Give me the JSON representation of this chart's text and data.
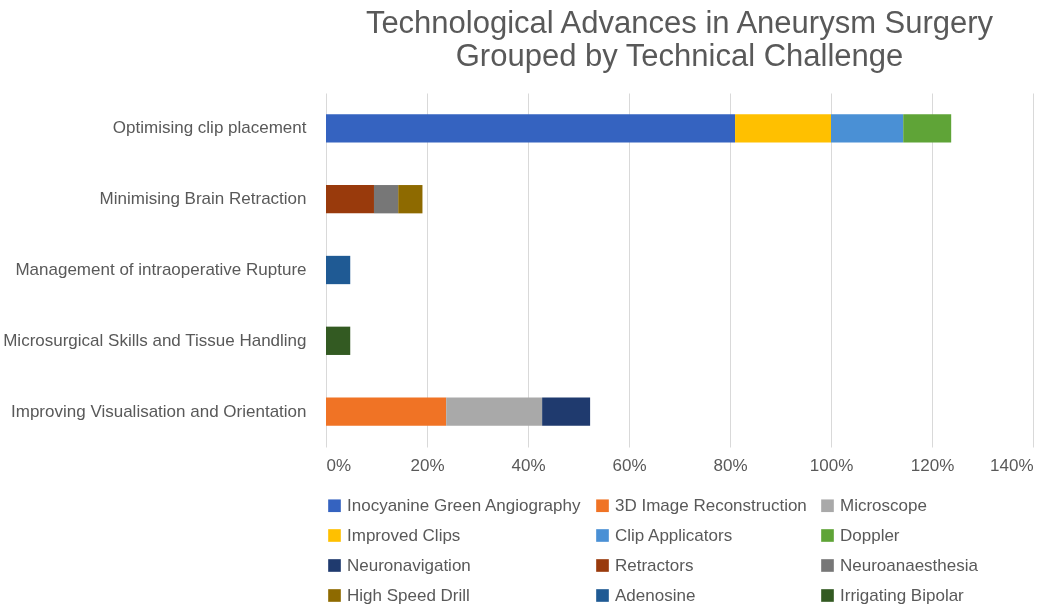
{
  "chart_data": {
    "type": "bar",
    "orientation": "horizontal",
    "stacked": true,
    "title": "Technological Advances in Aneurysm Surgery\nGrouped by Technical Challenge",
    "categories": [
      "Optimising clip placement",
      "Minimising Brain Retraction",
      "Management of intraoperative Rupture",
      "Microsurgical Skills and Tissue Handling",
      "Improving Visualisation and Orientation"
    ],
    "series": [
      {
        "name": "Inocyanine Green Angiography",
        "color": "#3563c0",
        "values": [
          81,
          null,
          null,
          null,
          null
        ]
      },
      {
        "name": "3D Image Reconstruction",
        "color": "#f07325",
        "values": [
          null,
          null,
          null,
          null,
          23.8
        ]
      },
      {
        "name": "Microscope",
        "color": "#a9a9a9",
        "values": [
          null,
          null,
          null,
          null,
          19
        ]
      },
      {
        "name": "Improved Clips",
        "color": "#ffc000",
        "values": [
          19,
          null,
          null,
          null,
          null
        ]
      },
      {
        "name": "Clip Applicators",
        "color": "#4a90d5",
        "values": [
          14.3,
          null,
          null,
          null,
          null
        ]
      },
      {
        "name": "Doppler",
        "color": "#5fa437",
        "values": [
          9.5,
          null,
          null,
          null,
          null
        ]
      },
      {
        "name": "Neuronavigation",
        "color": "#1f3a6e",
        "values": [
          null,
          null,
          null,
          null,
          9.5
        ]
      },
      {
        "name": "Retractors",
        "color": "#993a0c",
        "values": [
          null,
          9.5,
          null,
          null,
          null
        ]
      },
      {
        "name": "Neuroanaesthesia",
        "color": "#777777",
        "values": [
          null,
          4.8,
          null,
          null,
          null
        ]
      },
      {
        "name": "High Speed Drill",
        "color": "#8e6a00",
        "values": [
          null,
          4.8,
          null,
          null,
          null
        ]
      },
      {
        "name": "Adenosine",
        "color": "#1f5a94",
        "values": [
          null,
          null,
          4.8,
          null,
          null
        ]
      },
      {
        "name": "Irrigating Bipolar",
        "color": "#335a22",
        "values": [
          null,
          null,
          null,
          4.8,
          null
        ]
      }
    ],
    "xlim": [
      0,
      140
    ],
    "xticks": [
      {
        "value": 0,
        "label": "0%"
      },
      {
        "value": 20,
        "label": "20%"
      },
      {
        "value": 40,
        "label": "40%"
      },
      {
        "value": 60,
        "label": "60%"
      },
      {
        "value": 80,
        "label": "80%"
      },
      {
        "value": 100,
        "label": "100%"
      },
      {
        "value": 120,
        "label": "120%"
      },
      {
        "value": 140,
        "label": "140%"
      }
    ],
    "grid": "x",
    "legend": "bottom"
  }
}
